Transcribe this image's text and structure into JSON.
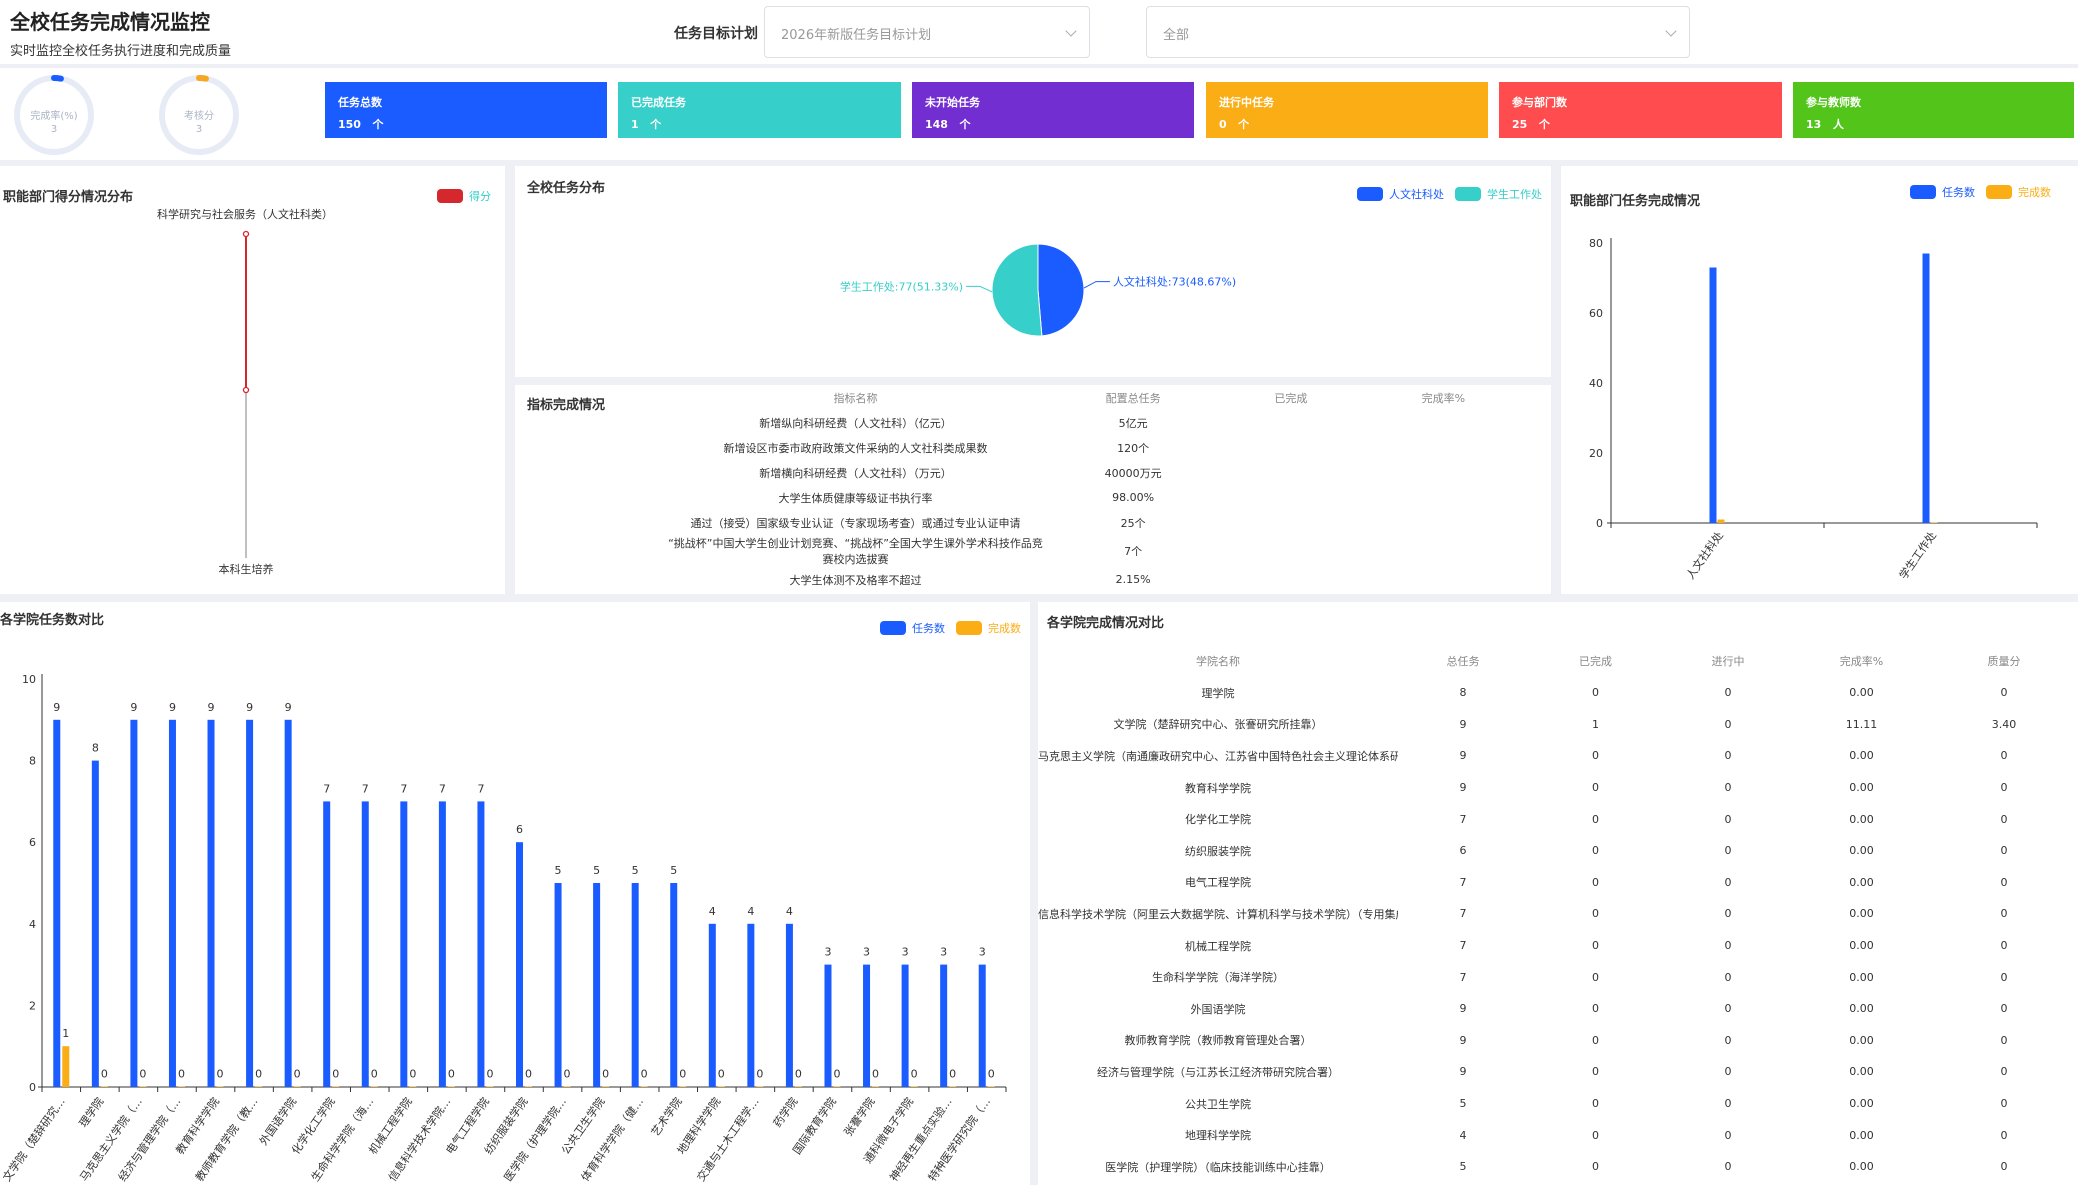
{
  "header": {
    "title": "全校任务完成情况监控",
    "subtitle": "实时监控全校任务执行进度和完成质量",
    "filter_label": "任务目标计划",
    "plan_select_value": "2026年新版任务目标计划",
    "scope_select_value": "全部"
  },
  "rings": [
    {
      "label": "完成率(%)",
      "value": "3",
      "color": "#1a5cff",
      "fraction": 0.03
    },
    {
      "label": "考核分",
      "value": "3",
      "color": "#f5a623",
      "fraction": 0.03
    }
  ],
  "kpis": [
    {
      "label": "任务总数",
      "value": "150",
      "unit": "个",
      "color": "#1a5cff"
    },
    {
      "label": "已完成任务",
      "value": "1",
      "unit": "个",
      "color": "#36cfc9"
    },
    {
      "label": "未开始任务",
      "value": "148",
      "unit": "个",
      "color": "#722ed1"
    },
    {
      "label": "进行中任务",
      "value": "0",
      "unit": "个",
      "color": "#faad14"
    },
    {
      "label": "参与部门数",
      "value": "25",
      "unit": "个",
      "color": "#ff4d4f"
    },
    {
      "label": "参与教师数",
      "value": "13",
      "unit": "人",
      "color": "#52c41a"
    }
  ],
  "dept_score": {
    "title": "职能部门得分情况分布",
    "legend": "得分",
    "top_label": "科学研究与社会服务（人文社科类）",
    "bottom_label": "本科生培养",
    "color": "#d4282d"
  },
  "pie_panel": {
    "title": "全校任务分布",
    "legend": [
      {
        "name": "人文社科处",
        "color": "#1a5cff"
      },
      {
        "name": "学生工作处",
        "color": "#36cfc9"
      }
    ]
  },
  "dept_completion": {
    "title": "职能部门任务完成情况",
    "legend": [
      {
        "name": "任务数",
        "color": "#1a5cff"
      },
      {
        "name": "完成数",
        "color": "#faad14"
      }
    ]
  },
  "indicators": {
    "title": "指标完成情况",
    "headers": [
      "指标名称",
      "配置总任务",
      "已完成",
      "完成率%"
    ],
    "rows": [
      [
        "新增纵向科研经费（人文社科）（亿元）",
        "5亿元",
        "",
        ""
      ],
      [
        "新增设区市委市政府政策文件采纳的人文社科类成果数",
        "120个",
        "",
        ""
      ],
      [
        "新增横向科研经费（人文社科）（万元）",
        "40000万元",
        "",
        ""
      ],
      [
        "大学生体质健康等级证书执行率",
        "98.00%",
        "",
        ""
      ],
      [
        "通过（接受）国家级专业认证（专家现场考查）或通过专业认证申请",
        "25个",
        "",
        ""
      ],
      [
        "“挑战杯”中国大学生创业计划竞赛、“挑战杯”全国大学生课外学术科技作品竞赛校内选拔赛",
        "7个",
        "",
        ""
      ],
      [
        "大学生体测不及格率不超过",
        "2.15%",
        "",
        ""
      ]
    ]
  },
  "college_chart_panel": {
    "title": "各学院任务数对比",
    "legend": [
      {
        "name": "任务数",
        "color": "#1a5cff"
      },
      {
        "name": "完成数",
        "color": "#faad14"
      }
    ]
  },
  "college_table": {
    "title": "各学院完成情况对比",
    "headers": [
      "学院名称",
      "总任务",
      "已完成",
      "进行中",
      "完成率%",
      "质量分"
    ],
    "rows": [
      [
        "理学院",
        "8",
        "0",
        "0",
        "0.00",
        "0"
      ],
      [
        "文学院（楚辞研究中心、张謇研究所挂靠）",
        "9",
        "1",
        "0",
        "11.11",
        "3.40"
      ],
      [
        "马克思主义学院（南通廉政研究中心、江苏省中国特色社会主义理论体系研究中心南通大",
        "9",
        "0",
        "0",
        "0.00",
        "0"
      ],
      [
        "教育科学学院",
        "9",
        "0",
        "0",
        "0.00",
        "0"
      ],
      [
        "化学化工学院",
        "7",
        "0",
        "0",
        "0.00",
        "0"
      ],
      [
        "纺织服装学院",
        "6",
        "0",
        "0",
        "0.00",
        "0"
      ],
      [
        "电气工程学院",
        "7",
        "0",
        "0",
        "0.00",
        "0"
      ],
      [
        "信息科学技术学院（阿里云大数据学院、计算机科学与技术学院）（专用集成电路设计重点",
        "7",
        "0",
        "0",
        "0.00",
        "0"
      ],
      [
        "机械工程学院",
        "7",
        "0",
        "0",
        "0.00",
        "0"
      ],
      [
        "生命科学学院（海洋学院）",
        "7",
        "0",
        "0",
        "0.00",
        "0"
      ],
      [
        "外国语学院",
        "9",
        "0",
        "0",
        "0.00",
        "0"
      ],
      [
        "教师教育学院（教师教育管理处合署）",
        "9",
        "0",
        "0",
        "0.00",
        "0"
      ],
      [
        "经济与管理学院（与江苏长江经济带研究院合署）",
        "9",
        "0",
        "0",
        "0.00",
        "0"
      ],
      [
        "公共卫生学院",
        "5",
        "0",
        "0",
        "0.00",
        "0"
      ],
      [
        "地理科学学院",
        "4",
        "0",
        "0",
        "0.00",
        "0"
      ],
      [
        "医学院（护理学院）（临床技能训练中心挂靠）",
        "5",
        "0",
        "0",
        "0.00",
        "0"
      ]
    ]
  },
  "chart_data": [
    {
      "type": "line",
      "title": "职能部门得分情况分布",
      "categories": [
        "科学研究与社会服务（人文社科类）",
        "本科生培养"
      ],
      "series": [
        {
          "name": "得分",
          "values": [
            3.4,
            0
          ]
        }
      ]
    },
    {
      "type": "pie",
      "title": "全校任务分布",
      "slices": [
        {
          "name": "人文社科处",
          "value": 73,
          "percent": 48.67,
          "label": "人文社科处:73(48.67%)",
          "color": "#1a5cff"
        },
        {
          "name": "学生工作处",
          "value": 77,
          "percent": 51.33,
          "label": "学生工作处:77(51.33%)",
          "color": "#36cfc9"
        }
      ]
    },
    {
      "type": "bar",
      "title": "职能部门任务完成情况",
      "categories": [
        "人文社科处",
        "学生工作处"
      ],
      "series": [
        {
          "name": "任务数",
          "values": [
            73,
            77
          ]
        },
        {
          "name": "完成数",
          "values": [
            1,
            0
          ]
        }
      ],
      "ylim": [
        0,
        80
      ],
      "yticks": [
        0,
        20,
        40,
        60,
        80
      ]
    },
    {
      "type": "bar",
      "title": "各学院任务数对比",
      "categories": [
        "文学院（楚辞研究…",
        "理学院",
        "马克思主义学院（…",
        "经济与管理学院（…",
        "教育科学学院",
        "教师教育学院（教…",
        "外国语学院",
        "化学化工学院",
        "生命科学学院（海…",
        "机械工程学院",
        "信息科学技术学院…",
        "电气工程学院",
        "纺织服装学院",
        "医学院（护理学院…",
        "公共卫生学院",
        "体育科学学院（健…",
        "艺术学院",
        "地理科学学院",
        "交通与土木工程学…",
        "药学院",
        "国际教育学院",
        "张謇学院",
        "通科微电子学院",
        "神经再生重点实验…",
        "特种医学研究院（…"
      ],
      "series": [
        {
          "name": "任务数",
          "values": [
            9,
            8,
            9,
            9,
            9,
            9,
            9,
            7,
            7,
            7,
            7,
            7,
            6,
            5,
            5,
            5,
            5,
            4,
            4,
            4,
            3,
            3,
            3,
            3,
            3
          ]
        },
        {
          "name": "完成数",
          "values": [
            1,
            0,
            0,
            0,
            0,
            0,
            0,
            0,
            0,
            0,
            0,
            0,
            0,
            0,
            0,
            0,
            0,
            0,
            0,
            0,
            0,
            0,
            0,
            0,
            0
          ]
        }
      ],
      "value_labels": [
        "9",
        "8",
        "9",
        "9",
        "9",
        "9",
        "9",
        "7",
        "7",
        "7",
        "7",
        "7",
        "6",
        "5",
        "5",
        "5",
        "5",
        "4",
        "4",
        "4",
        "3",
        "3",
        "3",
        "3",
        "3"
      ],
      "ylim": [
        0,
        10
      ],
      "yticks": [
        0,
        2,
        4,
        6,
        8,
        10
      ]
    }
  ]
}
